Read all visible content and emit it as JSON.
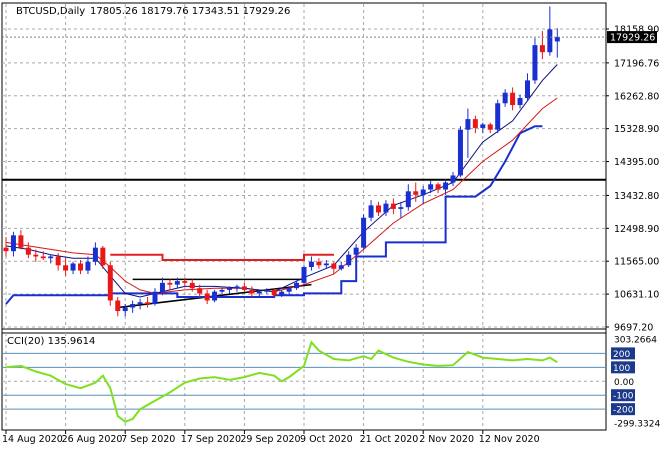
{
  "header": {
    "symbol": "BTCUSD,Daily",
    "ohlc": "17805.26 18179.76 17343.51 17929.26"
  },
  "chart_data": [
    {
      "type": "candlestick",
      "panel": "main",
      "price_labels": [
        "18158.90",
        "17196.76",
        "16262.80",
        "15328.90",
        "14395.00",
        "13432.80",
        "12498.90",
        "11565.00",
        "10631.10",
        "9697.20"
      ],
      "current_price": "17929.26",
      "ylim": [
        9400,
        18700
      ],
      "x_labels": [
        "14 Aug 2020",
        "26 Aug 2020",
        "7 Sep 2020",
        "17 Sep 2020",
        "29 Sep 2020",
        "9 Oct 2020",
        "21 Oct 2020",
        "2 Nov 2020",
        "12 Nov 2020"
      ],
      "x_label_days": [
        0,
        8,
        16,
        24,
        32,
        40,
        48,
        56,
        64
      ],
      "candles": [
        {
          "d": 0,
          "o": 11950,
          "h": 12250,
          "l": 11700,
          "c": 11850
        },
        {
          "d": 1,
          "o": 11850,
          "h": 12400,
          "l": 11700,
          "c": 12300
        },
        {
          "d": 2,
          "o": 12300,
          "h": 12450,
          "l": 11900,
          "c": 11950
        },
        {
          "d": 3,
          "o": 11950,
          "h": 12100,
          "l": 11650,
          "c": 11750
        },
        {
          "d": 4,
          "o": 11750,
          "h": 11900,
          "l": 11550,
          "c": 11700
        },
        {
          "d": 5,
          "o": 11700,
          "h": 11850,
          "l": 11600,
          "c": 11650
        },
        {
          "d": 6,
          "o": 11650,
          "h": 11750,
          "l": 11500,
          "c": 11700
        },
        {
          "d": 7,
          "o": 11700,
          "h": 11800,
          "l": 11300,
          "c": 11450
        },
        {
          "d": 8,
          "o": 11450,
          "h": 11650,
          "l": 11150,
          "c": 11300
        },
        {
          "d": 9,
          "o": 11300,
          "h": 11550,
          "l": 11200,
          "c": 11500
        },
        {
          "d": 10,
          "o": 11500,
          "h": 11600,
          "l": 11200,
          "c": 11300
        },
        {
          "d": 11,
          "o": 11300,
          "h": 11700,
          "l": 11200,
          "c": 11550
        },
        {
          "d": 12,
          "o": 11550,
          "h": 12100,
          "l": 11450,
          "c": 11950
        },
        {
          "d": 13,
          "o": 11950,
          "h": 12000,
          "l": 11350,
          "c": 11450
        },
        {
          "d": 14,
          "o": 11450,
          "h": 11550,
          "l": 10300,
          "c": 10450
        },
        {
          "d": 15,
          "o": 10450,
          "h": 10550,
          "l": 10000,
          "c": 10150
        },
        {
          "d": 16,
          "o": 10150,
          "h": 10350,
          "l": 10000,
          "c": 10250
        },
        {
          "d": 17,
          "o": 10250,
          "h": 10450,
          "l": 10100,
          "c": 10350
        },
        {
          "d": 18,
          "o": 10350,
          "h": 10500,
          "l": 10200,
          "c": 10400
        },
        {
          "d": 19,
          "o": 10400,
          "h": 10550,
          "l": 10250,
          "c": 10350
        },
        {
          "d": 20,
          "o": 10350,
          "h": 10800,
          "l": 10300,
          "c": 10700
        },
        {
          "d": 21,
          "o": 10700,
          "h": 11100,
          "l": 10600,
          "c": 10950
        },
        {
          "d": 22,
          "o": 10950,
          "h": 11050,
          "l": 10750,
          "c": 10900
        },
        {
          "d": 23,
          "o": 10900,
          "h": 11100,
          "l": 10800,
          "c": 11000
        },
        {
          "d": 24,
          "o": 11000,
          "h": 11100,
          "l": 10850,
          "c": 10950
        },
        {
          "d": 25,
          "o": 10950,
          "h": 11050,
          "l": 10700,
          "c": 10800
        },
        {
          "d": 26,
          "o": 10800,
          "h": 10900,
          "l": 10550,
          "c": 10650
        },
        {
          "d": 27,
          "o": 10650,
          "h": 10750,
          "l": 10350,
          "c": 10450
        },
        {
          "d": 28,
          "o": 10450,
          "h": 10750,
          "l": 10400,
          "c": 10700
        },
        {
          "d": 29,
          "o": 10700,
          "h": 10800,
          "l": 10600,
          "c": 10750
        },
        {
          "d": 30,
          "o": 10750,
          "h": 10850,
          "l": 10650,
          "c": 10800
        },
        {
          "d": 31,
          "o": 10800,
          "h": 10900,
          "l": 10700,
          "c": 10850
        },
        {
          "d": 32,
          "o": 10850,
          "h": 10950,
          "l": 10700,
          "c": 10750
        },
        {
          "d": 33,
          "o": 10750,
          "h": 10850,
          "l": 10550,
          "c": 10650
        },
        {
          "d": 34,
          "o": 10650,
          "h": 10750,
          "l": 10550,
          "c": 10700
        },
        {
          "d": 35,
          "o": 10700,
          "h": 10800,
          "l": 10650,
          "c": 10750
        },
        {
          "d": 36,
          "o": 10750,
          "h": 10800,
          "l": 10550,
          "c": 10600
        },
        {
          "d": 37,
          "o": 10600,
          "h": 10750,
          "l": 10550,
          "c": 10700
        },
        {
          "d": 38,
          "o": 10700,
          "h": 10850,
          "l": 10600,
          "c": 10800
        },
        {
          "d": 39,
          "o": 10800,
          "h": 11000,
          "l": 10750,
          "c": 10950
        },
        {
          "d": 40,
          "o": 10950,
          "h": 11450,
          "l": 10900,
          "c": 11400
        },
        {
          "d": 41,
          "o": 11400,
          "h": 11700,
          "l": 11300,
          "c": 11550
        },
        {
          "d": 42,
          "o": 11550,
          "h": 11650,
          "l": 11350,
          "c": 11450
        },
        {
          "d": 43,
          "o": 11450,
          "h": 11600,
          "l": 11350,
          "c": 11500
        },
        {
          "d": 44,
          "o": 11500,
          "h": 11550,
          "l": 11200,
          "c": 11350
        },
        {
          "d": 45,
          "o": 11350,
          "h": 11550,
          "l": 11300,
          "c": 11450
        },
        {
          "d": 46,
          "o": 11450,
          "h": 11850,
          "l": 11400,
          "c": 11750
        },
        {
          "d": 47,
          "o": 11750,
          "h": 12050,
          "l": 11700,
          "c": 11950
        },
        {
          "d": 48,
          "o": 11950,
          "h": 12900,
          "l": 11900,
          "c": 12800
        },
        {
          "d": 49,
          "o": 12800,
          "h": 13300,
          "l": 12700,
          "c": 13150
        },
        {
          "d": 50,
          "o": 13150,
          "h": 13250,
          "l": 12850,
          "c": 12950
        },
        {
          "d": 51,
          "o": 12950,
          "h": 13300,
          "l": 12850,
          "c": 13200
        },
        {
          "d": 52,
          "o": 13200,
          "h": 13350,
          "l": 12900,
          "c": 13050
        },
        {
          "d": 53,
          "o": 13050,
          "h": 13250,
          "l": 12800,
          "c": 13100
        },
        {
          "d": 54,
          "o": 13100,
          "h": 13750,
          "l": 13000,
          "c": 13550
        },
        {
          "d": 55,
          "o": 13550,
          "h": 13800,
          "l": 13250,
          "c": 13450
        },
        {
          "d": 56,
          "o": 13450,
          "h": 13700,
          "l": 13200,
          "c": 13600
        },
        {
          "d": 57,
          "o": 13600,
          "h": 13850,
          "l": 13500,
          "c": 13750
        },
        {
          "d": 58,
          "o": 13750,
          "h": 13800,
          "l": 13500,
          "c": 13600
        },
        {
          "d": 59,
          "o": 13600,
          "h": 13900,
          "l": 13450,
          "c": 13800
        },
        {
          "d": 60,
          "o": 13800,
          "h": 14100,
          "l": 13700,
          "c": 14000
        },
        {
          "d": 61,
          "o": 14000,
          "h": 15400,
          "l": 13950,
          "c": 15300
        },
        {
          "d": 62,
          "o": 15300,
          "h": 15900,
          "l": 14500,
          "c": 15600
        },
        {
          "d": 63,
          "o": 15600,
          "h": 15700,
          "l": 15200,
          "c": 15350
        },
        {
          "d": 64,
          "o": 15350,
          "h": 15500,
          "l": 15200,
          "c": 15450
        },
        {
          "d": 65,
          "o": 15450,
          "h": 15500,
          "l": 15200,
          "c": 15300
        },
        {
          "d": 66,
          "o": 15300,
          "h": 16150,
          "l": 15200,
          "c": 16050
        },
        {
          "d": 67,
          "o": 16050,
          "h": 16450,
          "l": 15950,
          "c": 16350
        },
        {
          "d": 68,
          "o": 16350,
          "h": 16500,
          "l": 15850,
          "c": 16000
        },
        {
          "d": 69,
          "o": 16000,
          "h": 16300,
          "l": 15900,
          "c": 16200
        },
        {
          "d": 70,
          "o": 16200,
          "h": 16900,
          "l": 16100,
          "c": 16700
        },
        {
          "d": 71,
          "o": 16700,
          "h": 17900,
          "l": 16600,
          "c": 17700
        },
        {
          "d": 72,
          "o": 17700,
          "h": 18100,
          "l": 17300,
          "c": 17500
        },
        {
          "d": 73,
          "o": 17500,
          "h": 18800,
          "l": 17400,
          "c": 18150
        },
        {
          "d": 74,
          "o": 17805.26,
          "h": 18179.76,
          "l": 17343.51,
          "c": 17929.26
        }
      ],
      "red_ma": [
        [
          0,
          12100
        ],
        [
          3,
          12000
        ],
        [
          6,
          11900
        ],
        [
          9,
          11800
        ],
        [
          12,
          11750
        ],
        [
          14,
          11400
        ],
        [
          16,
          11000
        ],
        [
          18,
          10750
        ],
        [
          20,
          10650
        ],
        [
          24,
          10750
        ],
        [
          28,
          10800
        ],
        [
          32,
          10800
        ],
        [
          36,
          10700
        ],
        [
          40,
          10900
        ],
        [
          44,
          11200
        ],
        [
          48,
          11900
        ],
        [
          52,
          12650
        ],
        [
          56,
          13200
        ],
        [
          60,
          13600
        ],
        [
          64,
          14400
        ],
        [
          68,
          15000
        ],
        [
          72,
          15900
        ],
        [
          74,
          16200
        ]
      ],
      "black_ma": [
        [
          0,
          12000
        ],
        [
          3,
          11900
        ],
        [
          6,
          11750
        ],
        [
          9,
          11650
        ],
        [
          12,
          11650
        ],
        [
          14,
          11150
        ],
        [
          16,
          10650
        ],
        [
          18,
          10550
        ],
        [
          20,
          10650
        ],
        [
          24,
          10850
        ],
        [
          28,
          10850
        ],
        [
          32,
          10800
        ],
        [
          36,
          10700
        ],
        [
          40,
          11100
        ],
        [
          44,
          11450
        ],
        [
          48,
          12400
        ],
        [
          52,
          13150
        ],
        [
          56,
          13450
        ],
        [
          60,
          13800
        ],
        [
          64,
          14950
        ],
        [
          68,
          15550
        ],
        [
          72,
          16700
        ],
        [
          74,
          17150
        ]
      ],
      "red_step": [
        [
          14,
          11750
        ],
        [
          21,
          11750
        ],
        [
          21,
          11600
        ],
        [
          40,
          11600
        ],
        [
          40,
          11750
        ],
        [
          44,
          11750
        ]
      ],
      "blue_step": [
        [
          0,
          10350
        ],
        [
          1,
          10600
        ],
        [
          14,
          10600
        ],
        [
          14,
          10650
        ],
        [
          23,
          10650
        ],
        [
          23,
          10550
        ],
        [
          36,
          10550
        ],
        [
          36,
          10600
        ],
        [
          40,
          10600
        ],
        [
          40,
          10650
        ],
        [
          45,
          10650
        ],
        [
          45,
          11000
        ],
        [
          47,
          11000
        ],
        [
          47,
          11700
        ],
        [
          51,
          11700
        ],
        [
          51,
          12100
        ],
        [
          56,
          12100
        ],
        [
          56,
          12100
        ],
        [
          59,
          12100
        ],
        [
          59,
          13400
        ],
        [
          63,
          13400
        ],
        [
          65,
          13700
        ],
        [
          67,
          14400
        ],
        [
          69,
          15200
        ],
        [
          71,
          15400
        ],
        [
          72,
          15400
        ]
      ],
      "horizontal_level": 13880,
      "trendlines": [
        {
          "from": [
            15,
            10250
          ],
          "to": [
            41,
            10900
          ]
        },
        {
          "from": [
            17,
            11050
          ],
          "to": [
            40,
            11050
          ]
        },
        {
          "from": [
            40,
            11750
          ],
          "to": [
            44,
            11750
          ]
        }
      ]
    },
    {
      "type": "line",
      "panel": "indicator",
      "title": "CCI(20) 135.9614",
      "scale_labels": [
        "303.2664",
        "200",
        "100",
        "0.00",
        "-100",
        "-200",
        "-299.3324"
      ],
      "levels": [
        200,
        100,
        0,
        -100,
        -200
      ],
      "ylim": [
        -299.3324,
        303.2664
      ],
      "values": [
        [
          0,
          100
        ],
        [
          2,
          110
        ],
        [
          4,
          70
        ],
        [
          6,
          40
        ],
        [
          8,
          -20
        ],
        [
          10,
          -50
        ],
        [
          12,
          -10
        ],
        [
          13,
          40
        ],
        [
          14,
          -50
        ],
        [
          15,
          -250
        ],
        [
          16,
          -290
        ],
        [
          17,
          -270
        ],
        [
          18,
          -200
        ],
        [
          20,
          -140
        ],
        [
          22,
          -80
        ],
        [
          24,
          -10
        ],
        [
          26,
          20
        ],
        [
          28,
          30
        ],
        [
          30,
          10
        ],
        [
          32,
          30
        ],
        [
          34,
          60
        ],
        [
          36,
          40
        ],
        [
          37,
          0
        ],
        [
          38,
          30
        ],
        [
          40,
          110
        ],
        [
          41,
          280
        ],
        [
          42,
          220
        ],
        [
          44,
          160
        ],
        [
          46,
          150
        ],
        [
          48,
          180
        ],
        [
          49,
          160
        ],
        [
          50,
          220
        ],
        [
          52,
          170
        ],
        [
          54,
          140
        ],
        [
          56,
          120
        ],
        [
          58,
          110
        ],
        [
          60,
          115
        ],
        [
          62,
          210
        ],
        [
          64,
          170
        ],
        [
          66,
          160
        ],
        [
          68,
          150
        ],
        [
          70,
          160
        ],
        [
          72,
          150
        ],
        [
          73,
          170
        ],
        [
          74,
          136
        ]
      ]
    }
  ]
}
